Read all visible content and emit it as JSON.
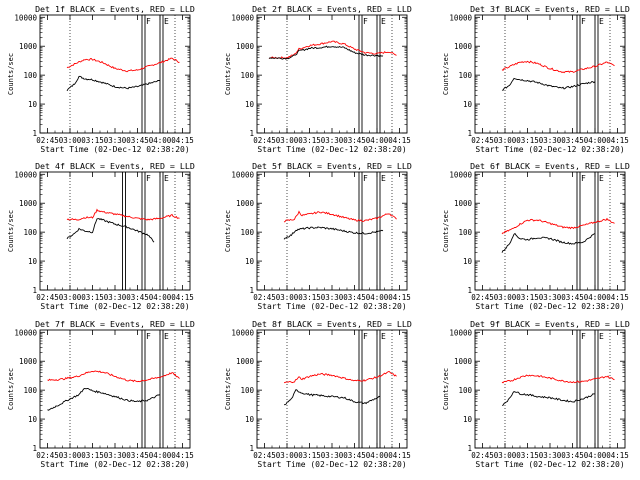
{
  "figure": {
    "xlabel": "Start Time (02-Dec-12 02:38:20)",
    "ylabel": "Counts/sec",
    "type": "line",
    "yscale": "log",
    "ylim": [
      1,
      12000
    ],
    "yticks": [
      "1",
      "10",
      "100",
      "1000",
      "10000"
    ],
    "xlim_minutes": [
      160,
      260
    ],
    "xticks": [
      "02:45",
      "03:00",
      "03:15",
      "03:30",
      "03:45",
      "04:00",
      "04:15"
    ],
    "colors": {
      "events": "#000000",
      "lld": "#ff0000",
      "axes": "#000000"
    }
  },
  "panels": [
    {
      "title": "Det 1f BLACK = Events, RED = LLD",
      "markers": [
        {
          "time": "03:48",
          "label": "F"
        },
        {
          "time": "04:00",
          "label": "E"
        }
      ],
      "chart_data": {
        "type": "line",
        "series": [
          {
            "name": "LLD",
            "x": [
              "02:58",
              "03:05",
              "03:10",
              "03:15",
              "03:22",
              "03:30",
              "03:38",
              "03:45",
              "03:52",
              "04:00",
              "04:08",
              "04:13"
            ],
            "y": [
              180,
              270,
              350,
              350,
              270,
              170,
              140,
              150,
              200,
              270,
              380,
              280
            ]
          },
          {
            "name": "Events",
            "x": [
              "02:58",
              "03:03",
              "03:06",
              "03:10",
              "03:15",
              "03:22",
              "03:30",
              "03:38",
              "03:45",
              "03:52",
              "04:00"
            ],
            "y": [
              30,
              50,
              90,
              75,
              70,
              55,
              40,
              35,
              40,
              50,
              65
            ]
          }
        ]
      }
    },
    {
      "title": "Det 2f BLACK = Events, RED = LLD",
      "markers": [
        {
          "time": "03:48",
          "label": "F"
        },
        {
          "time": "04:00",
          "label": "E"
        }
      ],
      "chart_data": {
        "type": "line",
        "series": [
          {
            "name": "LLD",
            "x": [
              "02:48",
              "03:00",
              "03:05",
              "03:08",
              "03:15",
              "03:22",
              "03:30",
              "03:38",
              "03:45",
              "03:52",
              "04:00",
              "04:08",
              "04:13"
            ],
            "y": [
              400,
              400,
              520,
              800,
              1050,
              1200,
              1450,
              1200,
              800,
              600,
              550,
              650,
              480
            ]
          },
          {
            "name": "Events",
            "x": [
              "02:48",
              "03:00",
              "03:05",
              "03:08",
              "03:15",
              "03:22",
              "03:30",
              "03:38",
              "03:45",
              "03:52",
              "04:00",
              "04:04"
            ],
            "y": [
              400,
              380,
              470,
              680,
              850,
              900,
              1000,
              900,
              600,
              500,
              480,
              450
            ]
          }
        ]
      }
    },
    {
      "title": "Det 3f BLACK = Events, RED = LLD",
      "markers": [
        {
          "time": "03:48",
          "label": "F"
        },
        {
          "time": "04:00",
          "label": "E"
        }
      ],
      "chart_data": {
        "type": "line",
        "series": [
          {
            "name": "LLD",
            "x": [
              "02:58",
              "03:05",
              "03:10",
              "03:15",
              "03:22",
              "03:30",
              "03:38",
              "03:45",
              "03:52",
              "04:00",
              "04:08",
              "04:13"
            ],
            "y": [
              150,
              220,
              280,
              300,
              250,
              170,
              130,
              130,
              160,
              200,
              280,
              210
            ]
          },
          {
            "name": "Events",
            "x": [
              "02:58",
              "03:03",
              "03:06",
              "03:10",
              "03:15",
              "03:22",
              "03:30",
              "03:38",
              "03:45",
              "03:52",
              "04:00"
            ],
            "y": [
              30,
              45,
              80,
              70,
              65,
              55,
              42,
              35,
              40,
              50,
              60
            ]
          }
        ]
      }
    },
    {
      "title": "Det 4f BLACK = Events, RED = LLD",
      "markers": [
        {
          "time": "03:35",
          "label": ""
        },
        {
          "time": "03:48",
          "label": "F"
        },
        {
          "time": "04:00",
          "label": "E"
        }
      ],
      "chart_data": {
        "type": "line",
        "series": [
          {
            "name": "LLD",
            "x": [
              "02:58",
              "03:05",
              "03:10",
              "03:15",
              "03:18",
              "03:22",
              "03:30",
              "03:38",
              "03:45",
              "03:52",
              "04:00",
              "04:08",
              "04:13"
            ],
            "y": [
              280,
              270,
              320,
              320,
              580,
              500,
              420,
              350,
              300,
              270,
              300,
              380,
              300
            ]
          },
          {
            "name": "Events",
            "x": [
              "02:58",
              "03:03",
              "03:06",
              "03:10",
              "03:15",
              "03:18",
              "03:22",
              "03:30",
              "03:38",
              "03:45",
              "03:52",
              "03:56"
            ],
            "y": [
              60,
              90,
              130,
              110,
              100,
              300,
              260,
              190,
              150,
              110,
              80,
              45
            ]
          }
        ]
      }
    },
    {
      "title": "Det 5f BLACK = Events, RED = LLD",
      "markers": [
        {
          "time": "03:48",
          "label": "F"
        },
        {
          "time": "04:00",
          "label": "E"
        }
      ],
      "chart_data": {
        "type": "line",
        "series": [
          {
            "name": "LLD",
            "x": [
              "02:58",
              "03:05",
              "03:08",
              "03:10",
              "03:15",
              "03:22",
              "03:30",
              "03:38",
              "03:45",
              "03:52",
              "04:00",
              "04:08",
              "04:13"
            ],
            "y": [
              240,
              280,
              500,
              380,
              420,
              500,
              420,
              320,
              260,
              250,
              300,
              450,
              280
            ]
          },
          {
            "name": "Events",
            "x": [
              "02:58",
              "03:03",
              "03:06",
              "03:10",
              "03:15",
              "03:22",
              "03:30",
              "03:38",
              "03:45",
              "03:52",
              "04:04"
            ],
            "y": [
              60,
              80,
              120,
              130,
              140,
              145,
              130,
              110,
              95,
              90,
              110
            ]
          }
        ]
      }
    },
    {
      "title": "Det 6f BLACK = Events, RED = LLD",
      "markers": [
        {
          "time": "03:48",
          "label": "F"
        },
        {
          "time": "04:00",
          "label": "E"
        }
      ],
      "chart_data": {
        "type": "line",
        "series": [
          {
            "name": "LLD",
            "x": [
              "02:58",
              "03:05",
              "03:10",
              "03:15",
              "03:22",
              "03:30",
              "03:38",
              "03:45",
              "03:52",
              "04:00",
              "04:08",
              "04:13"
            ],
            "y": [
              90,
              130,
              190,
              260,
              260,
              200,
              150,
              140,
              170,
              220,
              280,
              200
            ]
          },
          {
            "name": "Events",
            "x": [
              "02:58",
              "03:03",
              "03:06",
              "03:10",
              "03:15",
              "03:22",
              "03:30",
              "03:38",
              "03:45",
              "03:52",
              "04:00"
            ],
            "y": [
              20,
              40,
              90,
              60,
              55,
              65,
              60,
              45,
              40,
              45,
              90
            ]
          }
        ]
      }
    },
    {
      "title": "Det 7f BLACK = Events, RED = LLD",
      "markers": [
        {
          "time": "03:48",
          "label": "F"
        },
        {
          "time": "04:00",
          "label": "E"
        }
      ],
      "chart_data": {
        "type": "line",
        "series": [
          {
            "name": "LLD",
            "x": [
              "02:45",
              "02:55",
              "03:05",
              "03:10",
              "03:15",
              "03:22",
              "03:30",
              "03:38",
              "03:45",
              "03:52",
              "04:00",
              "04:08",
              "04:13"
            ],
            "y": [
              220,
              240,
              300,
              380,
              460,
              420,
              300,
              220,
              200,
              230,
              280,
              400,
              250
            ]
          },
          {
            "name": "Events",
            "x": [
              "02:45",
              "02:52",
              "03:00",
              "03:06",
              "03:10",
              "03:15",
              "03:22",
              "03:30",
              "03:38",
              "03:45",
              "03:52",
              "04:00"
            ],
            "y": [
              20,
              30,
              50,
              70,
              120,
              95,
              80,
              60,
              45,
              40,
              45,
              70
            ]
          }
        ]
      }
    },
    {
      "title": "Det 8f BLACK = Events, RED = LLD",
      "markers": [
        {
          "time": "03:48",
          "label": "F"
        },
        {
          "time": "04:00",
          "label": "E"
        }
      ],
      "chart_data": {
        "type": "line",
        "series": [
          {
            "name": "LLD",
            "x": [
              "02:58",
              "03:05",
              "03:08",
              "03:10",
              "03:15",
              "03:22",
              "03:30",
              "03:38",
              "03:45",
              "03:52",
              "04:00",
              "04:08",
              "04:13"
            ],
            "y": [
              180,
              200,
              280,
              240,
              300,
              360,
              330,
              260,
              210,
              220,
              280,
              420,
              300
            ]
          },
          {
            "name": "Events",
            "x": [
              "02:58",
              "03:03",
              "03:06",
              "03:10",
              "03:15",
              "03:22",
              "03:30",
              "03:38",
              "03:45",
              "03:52",
              "04:02"
            ],
            "y": [
              30,
              50,
              100,
              80,
              70,
              65,
              60,
              55,
              40,
              35,
              60
            ]
          }
        ]
      }
    },
    {
      "title": "Det 9f BLACK = Events, RED = LLD",
      "markers": [
        {
          "time": "03:48",
          "label": "F"
        },
        {
          "time": "04:00",
          "label": "E"
        }
      ],
      "chart_data": {
        "type": "line",
        "series": [
          {
            "name": "LLD",
            "x": [
              "02:58",
              "03:05",
              "03:10",
              "03:15",
              "03:22",
              "03:30",
              "03:38",
              "03:45",
              "03:52",
              "04:00",
              "04:08",
              "04:13"
            ],
            "y": [
              180,
              220,
              280,
              330,
              310,
              260,
              210,
              190,
              200,
              240,
              300,
              230
            ]
          },
          {
            "name": "Events",
            "x": [
              "02:58",
              "03:03",
              "03:06",
              "03:10",
              "03:15",
              "03:22",
              "03:30",
              "03:38",
              "03:45",
              "03:52",
              "04:00"
            ],
            "y": [
              30,
              50,
              95,
              75,
              70,
              60,
              55,
              45,
              40,
              50,
              75
            ]
          }
        ]
      }
    }
  ]
}
